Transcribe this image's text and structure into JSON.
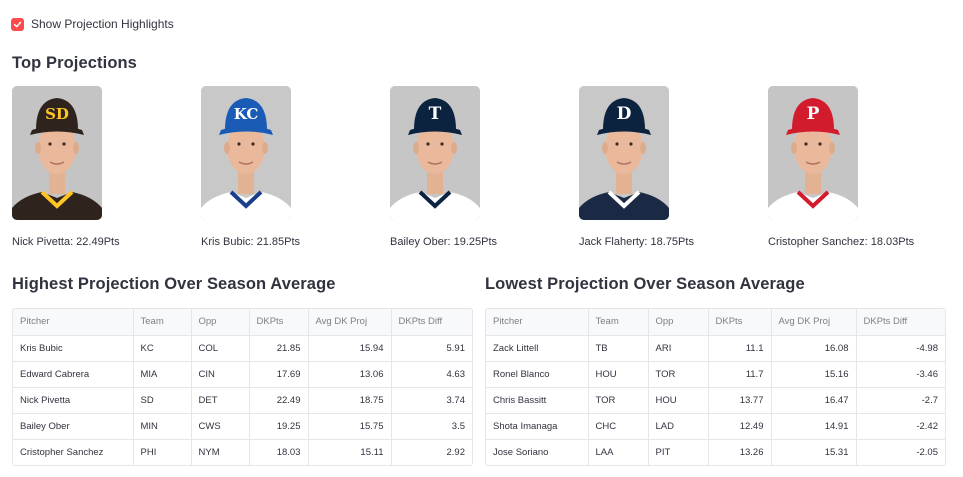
{
  "toggle": {
    "label": "Show Projection Highlights",
    "checked": true,
    "accent": "#ff4b4b"
  },
  "top_projections": {
    "title": "Top Projections",
    "players": [
      {
        "caption": "Nick Pivetta: 22.49Pts",
        "cap_color": "#2f241d",
        "logo": "SD",
        "logo_color": "#ffc425",
        "jersey": "#2f241d",
        "trim": "#ffc425",
        "bg": "#c4c4c4"
      },
      {
        "caption": "Kris Bubic: 21.85Pts",
        "cap_color": "#1a5bb5",
        "logo": "KC",
        "logo_color": "#ffffff",
        "jersey": "#ffffff",
        "trim": "#1a3e8a",
        "bg": "#c8c8c8"
      },
      {
        "caption": "Bailey Ober: 19.25Pts",
        "cap_color": "#0c2340",
        "logo": "T",
        "logo_color": "#ffffff",
        "jersey": "#ffffff",
        "trim": "#0c2340",
        "bg": "#c6c6c6"
      },
      {
        "caption": "Jack Flaherty: 18.75Pts",
        "cap_color": "#0c2340",
        "logo": "D",
        "logo_color": "#ffffff",
        "jersey": "#1b2a44",
        "trim": "#ffffff",
        "bg": "#c8c8c8"
      },
      {
        "caption": "Cristopher Sanchez: 18.03Pts",
        "cap_color": "#d21c2e",
        "logo": "P",
        "logo_color": "#ffffff",
        "jersey": "#ffffff",
        "trim": "#d21c2e",
        "bg": "#c5c5c5"
      }
    ]
  },
  "highest": {
    "title": "Highest Projection Over Season Average",
    "columns": [
      "Pitcher",
      "Team",
      "Opp",
      "DKPts",
      "Avg DK Proj",
      "DKPts Diff"
    ],
    "rows": [
      [
        "Kris Bubic",
        "KC",
        "COL",
        "21.85",
        "15.94",
        "5.91"
      ],
      [
        "Edward Cabrera",
        "MIA",
        "CIN",
        "17.69",
        "13.06",
        "4.63"
      ],
      [
        "Nick Pivetta",
        "SD",
        "DET",
        "22.49",
        "18.75",
        "3.74"
      ],
      [
        "Bailey Ober",
        "MIN",
        "CWS",
        "19.25",
        "15.75",
        "3.5"
      ],
      [
        "Cristopher Sanchez",
        "PHI",
        "NYM",
        "18.03",
        "15.11",
        "2.92"
      ]
    ]
  },
  "lowest": {
    "title": "Lowest Projection Over Season Average",
    "columns": [
      "Pitcher",
      "Team",
      "Opp",
      "DKPts",
      "Avg DK Proj",
      "DKPts Diff"
    ],
    "rows": [
      [
        "Zack Littell",
        "TB",
        "ARI",
        "11.1",
        "16.08",
        "-4.98"
      ],
      [
        "Ronel Blanco",
        "HOU",
        "TOR",
        "11.7",
        "15.16",
        "-3.46"
      ],
      [
        "Chris Bassitt",
        "TOR",
        "HOU",
        "13.77",
        "16.47",
        "-2.7"
      ],
      [
        "Shota Imanaga",
        "CHC",
        "LAD",
        "12.49",
        "14.91",
        "-2.42"
      ],
      [
        "Jose Soriano",
        "LAA",
        "PIT",
        "13.26",
        "15.31",
        "-2.05"
      ]
    ]
  }
}
